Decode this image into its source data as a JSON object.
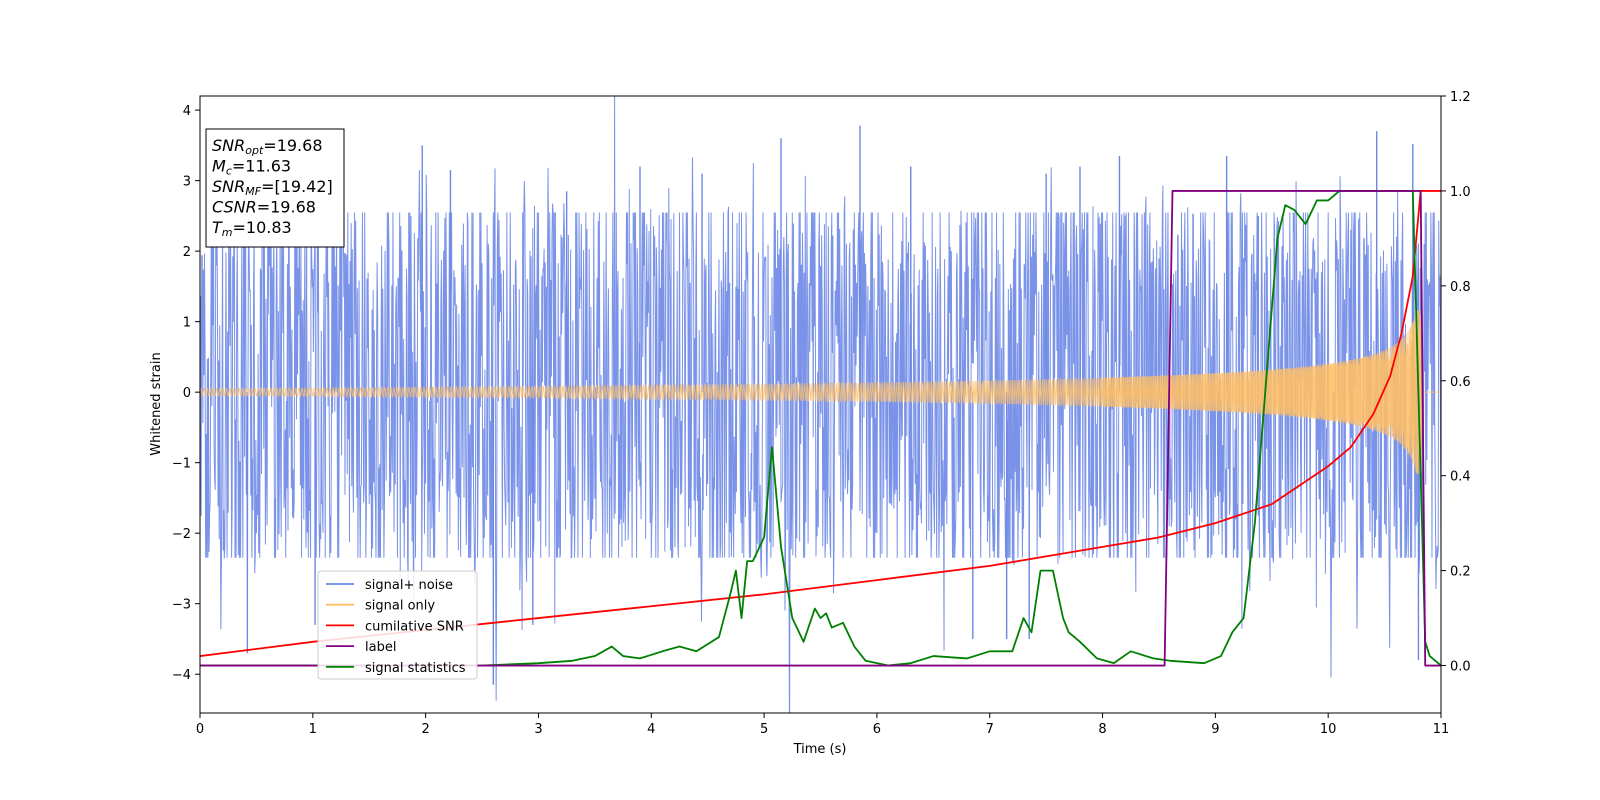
{
  "chart_data": {
    "type": "line",
    "xlabel": "Time (s)",
    "ylabel": "Whitened strain",
    "xlim": [
      0,
      11
    ],
    "ylim_left": [
      -4.55,
      4.2
    ],
    "ylim_right": [
      -0.1,
      1.2
    ],
    "xticks": [
      0,
      1,
      2,
      3,
      4,
      5,
      6,
      7,
      8,
      9,
      10,
      11
    ],
    "yticks_left": [
      -4,
      -3,
      -2,
      -1,
      0,
      1,
      2,
      3,
      4
    ],
    "yticks_right": [
      "0.0",
      "0.2",
      "0.4",
      "0.6",
      "0.8",
      "1.0",
      "1.2"
    ],
    "legend": {
      "placement": "lower-left",
      "entries": [
        {
          "label": "signal+ noise",
          "color": "#6b87e6"
        },
        {
          "label": "signal only",
          "color": "#ffbf66"
        },
        {
          "label": "cumilative SNR",
          "color": "#ff0000"
        },
        {
          "label": "label",
          "color": "#800080"
        },
        {
          "label": "signal statistics",
          "color": "#008000"
        }
      ]
    },
    "info_box": [
      {
        "base": "SNR",
        "sub": "opt",
        "rest": "=19.68"
      },
      {
        "base": "M",
        "sub": "c",
        "rest": "=11.63"
      },
      {
        "base": "SNR",
        "sub": "MF",
        "rest": "=[19.42]"
      },
      {
        "base": "CSNR",
        "sub": "",
        "rest": "=19.68"
      },
      {
        "base": "T",
        "sub": "m",
        "rest": "=10.83"
      }
    ],
    "series": [
      {
        "name": "signal+ noise",
        "axis": "left",
        "color": "#6b87e6",
        "envelope": {
          "x": [
            0,
            11
          ],
          "low": -2.3,
          "high": 2.5
        },
        "spikes": [
          [
            0.42,
            -3.7
          ],
          [
            1.02,
            -3.3
          ],
          [
            1.97,
            3.5
          ],
          [
            2.22,
            3.15
          ],
          [
            2.6,
            -4.15
          ],
          [
            2.95,
            -3.3
          ],
          [
            3.25,
            2.85
          ],
          [
            3.9,
            3.2
          ],
          [
            4.45,
            3.1
          ],
          [
            5.15,
            3.6
          ],
          [
            5.85,
            3.78
          ],
          [
            6.3,
            3.2
          ],
          [
            6.85,
            -3.5
          ],
          [
            7.15,
            -3.5
          ],
          [
            7.35,
            -3.5
          ],
          [
            7.5,
            3.1
          ],
          [
            7.8,
            3.2
          ],
          [
            8.15,
            3.35
          ],
          [
            9.1,
            3.35
          ],
          [
            9.38,
            2.5
          ],
          [
            10.43,
            3.7
          ],
          [
            10.75,
            3.52
          ],
          [
            10.8,
            -3.8
          ]
        ]
      },
      {
        "name": "signal only",
        "axis": "left",
        "color": "#ffbf66",
        "chirp": {
          "t_merge": 10.83,
          "amp_at_zero": 0.05,
          "amp_max": 1.55,
          "cycles_shown": 190
        }
      },
      {
        "name": "cumilative SNR",
        "axis": "right",
        "color": "#ff0000",
        "x": [
          0,
          1,
          2,
          3,
          4,
          5,
          6,
          7,
          7.5,
          8,
          8.5,
          9,
          9.5,
          10,
          10.2,
          10.4,
          10.55,
          10.65,
          10.75,
          10.82,
          10.9,
          11
        ],
        "values": [
          0.02,
          0.05,
          0.075,
          0.1,
          0.125,
          0.15,
          0.18,
          0.21,
          0.23,
          0.25,
          0.27,
          0.3,
          0.34,
          0.42,
          0.46,
          0.53,
          0.61,
          0.7,
          0.82,
          1.0,
          1.0,
          1.0
        ]
      },
      {
        "name": "label",
        "axis": "right",
        "color": "#800080",
        "x": [
          0,
          8.55,
          8.62,
          10.82,
          10.86,
          11
        ],
        "values": [
          0,
          0,
          1,
          1,
          0,
          0
        ]
      },
      {
        "name": "signal statistics",
        "axis": "right",
        "color": "#008000",
        "x": [
          0,
          0.5,
          1,
          1.5,
          2,
          2.5,
          3,
          3.3,
          3.5,
          3.65,
          3.75,
          3.9,
          4.1,
          4.25,
          4.4,
          4.6,
          4.7,
          4.75,
          4.8,
          4.85,
          4.9,
          5.0,
          5.07,
          5.15,
          5.25,
          5.35,
          5.45,
          5.5,
          5.55,
          5.6,
          5.7,
          5.8,
          5.9,
          6.1,
          6.3,
          6.5,
          6.8,
          7.0,
          7.2,
          7.3,
          7.37,
          7.45,
          7.5,
          7.56,
          7.65,
          7.7,
          7.8,
          7.95,
          8.1,
          8.25,
          8.45,
          8.6,
          8.9,
          9.05,
          9.15,
          9.25,
          9.35,
          9.45,
          9.55,
          9.62,
          9.7,
          9.8,
          9.9,
          10.0,
          10.1,
          10.3,
          10.6,
          10.75,
          10.82,
          10.86,
          10.9,
          11
        ],
        "values": [
          0,
          0,
          0,
          0,
          0,
          0,
          0.005,
          0.01,
          0.02,
          0.04,
          0.02,
          0.015,
          0.03,
          0.04,
          0.03,
          0.06,
          0.15,
          0.2,
          0.1,
          0.22,
          0.22,
          0.27,
          0.46,
          0.25,
          0.1,
          0.05,
          0.12,
          0.1,
          0.11,
          0.08,
          0.09,
          0.04,
          0.01,
          0.0,
          0.005,
          0.02,
          0.015,
          0.03,
          0.03,
          0.1,
          0.07,
          0.2,
          0.2,
          0.2,
          0.1,
          0.07,
          0.05,
          0.015,
          0.005,
          0.03,
          0.015,
          0.01,
          0.005,
          0.02,
          0.07,
          0.1,
          0.3,
          0.6,
          0.9,
          0.97,
          0.96,
          0.93,
          0.98,
          0.98,
          1.0,
          1.0,
          1.0,
          1.0,
          0.4,
          0.05,
          0.02,
          0
        ]
      }
    ]
  }
}
